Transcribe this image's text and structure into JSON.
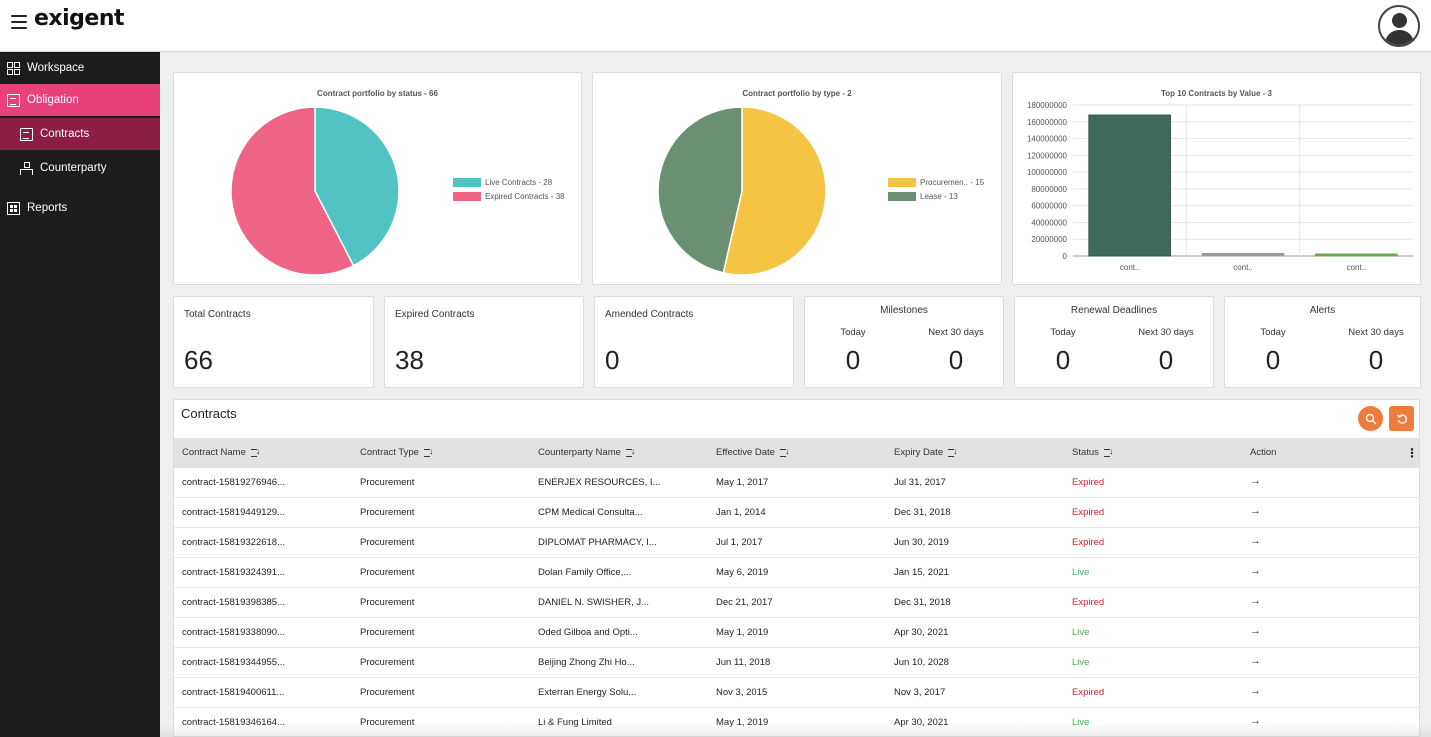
{
  "header": {
    "logo_text": "exigent"
  },
  "sidebar": {
    "items": [
      {
        "label": "Workspace",
        "icon": "grid-icon"
      },
      {
        "label": "Obligation",
        "icon": "document-icon"
      },
      {
        "label": "Contracts",
        "icon": "document-icon"
      },
      {
        "label": "Counterparty",
        "icon": "hierarchy-icon"
      },
      {
        "label": "Reports",
        "icon": "report-icon"
      }
    ]
  },
  "charts": {
    "status": {
      "title": "Contract portfolio by status - 66",
      "slices": [
        {
          "label": "Live Contracts - 28",
          "value": 28,
          "color": "#52c3c3"
        },
        {
          "label": "Expired Contracts - 38",
          "value": 38,
          "color": "#ef6487"
        }
      ]
    },
    "type": {
      "title": "Contract portfolio by type - 2",
      "slices": [
        {
          "label": "Procuremen.. - 15",
          "value": 15,
          "color": "#f5c445"
        },
        {
          "label": "Lease - 13",
          "value": 13,
          "color": "#6b8f73"
        }
      ]
    },
    "top10": {
      "title": "Top 10 Contracts by Value - 3",
      "y_ticks": [
        "180000000",
        "160000000",
        "140000000",
        "120000000",
        "100000000",
        "80000000",
        "60000000",
        "40000000",
        "20000000",
        "0"
      ],
      "categories": [
        "cont..",
        "cont..",
        "cont.."
      ],
      "values": [
        168000000,
        3000000,
        2000000
      ],
      "colors": [
        "#3e6b5c",
        "#9a9a9a",
        "#6aa84f"
      ],
      "ylim": [
        0,
        180000000
      ]
    }
  },
  "chart_data": [
    {
      "type": "pie",
      "title": "Contract portfolio by status - 66",
      "labels": [
        "Live Contracts - 28",
        "Expired Contracts - 38"
      ],
      "values": [
        28,
        38
      ]
    },
    {
      "type": "pie",
      "title": "Contract portfolio by type - 2",
      "labels": [
        "Procuremen.. - 15",
        "Lease - 13"
      ],
      "values": [
        15,
        13
      ]
    },
    {
      "type": "bar",
      "title": "Top 10 Contracts by Value - 3",
      "categories": [
        "cont..",
        "cont..",
        "cont.."
      ],
      "values": [
        168000000,
        3000000,
        2000000
      ],
      "ylim": [
        0,
        180000000
      ]
    }
  ],
  "stats": {
    "total": {
      "label": "Total Contracts",
      "value": "66"
    },
    "expired": {
      "label": "Expired Contracts",
      "value": "38"
    },
    "amended": {
      "label": "Amended Contracts",
      "value": "0"
    },
    "milestones": {
      "label": "Milestones",
      "today_label": "Today",
      "next_label": "Next 30 days",
      "today": "0",
      "next": "0"
    },
    "renewals": {
      "label": "Renewal Deadlines",
      "today_label": "Today",
      "next_label": "Next 30 days",
      "today": "0",
      "next": "0"
    },
    "alerts": {
      "label": "Alerts",
      "today_label": "Today",
      "next_label": "Next 30 days",
      "today": "0",
      "next": "0"
    }
  },
  "table": {
    "title": "Contracts",
    "columns": [
      "Contract Name",
      "Contract Type",
      "Counterparty Name",
      "Effective Date",
      "Expiry Date",
      "Status",
      "Action"
    ],
    "rows": [
      {
        "name": "contract-15819276946...",
        "type": "Procurement",
        "counterparty": "ENERJEX RESOURCES, I...",
        "effective": "May 1, 2017",
        "expiry": "Jul 31, 2017",
        "status": "Expired"
      },
      {
        "name": "contract-15819449129...",
        "type": "Procurement",
        "counterparty": "CPM Medical Consulta...",
        "effective": "Jan 1, 2014",
        "expiry": "Dec 31, 2018",
        "status": "Expired"
      },
      {
        "name": "contract-15819322618...",
        "type": "Procurement",
        "counterparty": "DIPLOMAT PHARMACY, I...",
        "effective": "Jul 1, 2017",
        "expiry": "Jun 30, 2019",
        "status": "Expired"
      },
      {
        "name": "contract-15819324391...",
        "type": "Procurement",
        "counterparty": "Dolan Family Office,...",
        "effective": "May 6, 2019",
        "expiry": "Jan 15, 2021",
        "status": "Live"
      },
      {
        "name": "contract-15819398385...",
        "type": "Procurement",
        "counterparty": "DANIEL N. SWISHER, J...",
        "effective": "Dec 21, 2017",
        "expiry": "Dec 31, 2018",
        "status": "Expired"
      },
      {
        "name": "contract-15819338090...",
        "type": "Procurement",
        "counterparty": "Oded Gilboa and Opti...",
        "effective": "May 1, 2019",
        "expiry": "Apr 30, 2021",
        "status": "Live"
      },
      {
        "name": "contract-15819344955...",
        "type": "Procurement",
        "counterparty": "Beijing Zhong Zhi Ho...",
        "effective": "Jun 11, 2018",
        "expiry": "Jun 10, 2028",
        "status": "Live"
      },
      {
        "name": "contract-15819400611...",
        "type": "Procurement",
        "counterparty": "Exterran Energy Solu...",
        "effective": "Nov 3, 2015",
        "expiry": "Nov 3, 2017",
        "status": "Expired"
      },
      {
        "name": "contract-15819346164...",
        "type": "Procurement",
        "counterparty": "Li & Fung Limited",
        "effective": "May 1, 2019",
        "expiry": "Apr 30, 2021",
        "status": "Live"
      }
    ],
    "action_glyph": "→"
  }
}
